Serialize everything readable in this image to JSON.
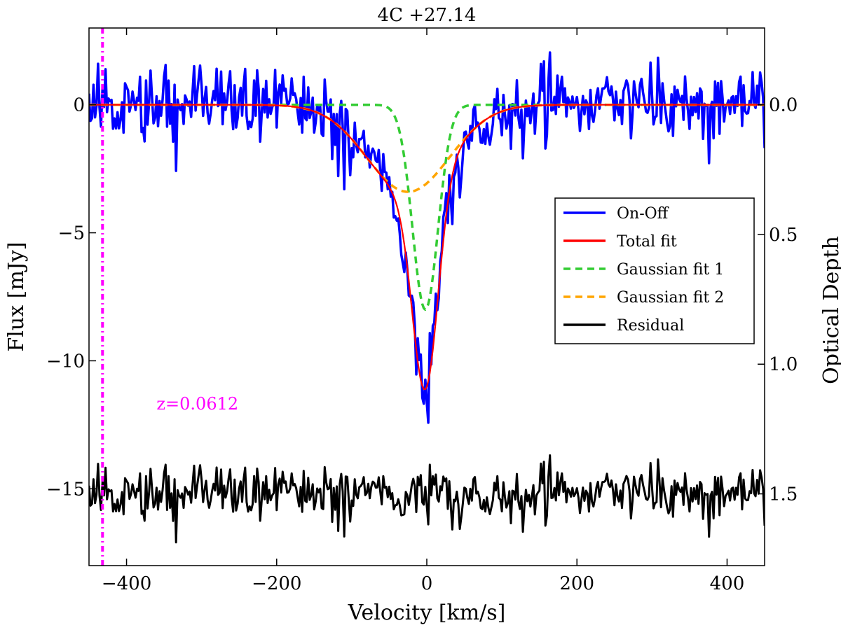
{
  "chart_data": {
    "type": "line",
    "title": "4C +27.14",
    "xlabel": "Velocity [km/s]",
    "ylabel": "Flux [mJy]",
    "ylabel_right": "Optical Depth",
    "xlim": [
      -450,
      450
    ],
    "ylim": [
      -18,
      3
    ],
    "x_ticks": [
      -400,
      -200,
      0,
      200,
      400
    ],
    "x_tick_labels": [
      "−400",
      "−200",
      "0",
      "200",
      "400"
    ],
    "y_ticks": [
      0,
      -5,
      -10,
      -15
    ],
    "y_tick_labels": [
      "0",
      "−5",
      "−10",
      "−15"
    ],
    "y2_ticks": [
      0.0,
      0.5,
      1.0,
      1.5
    ],
    "y2_tick_labels": [
      "0.0",
      "0.5",
      "1.0",
      "1.5"
    ],
    "y2_per_mjy": 0.0987,
    "grid": false,
    "legend_position": "center-right",
    "annotation": {
      "text": "z=0.0612",
      "line_x": -432,
      "label_x": -360,
      "label_y": -11.9,
      "color": "#ff00ff"
    },
    "model": {
      "step": 2,
      "gaussian_1": {
        "amplitude": -8.0,
        "center": -2,
        "sigma": 17
      },
      "gaussian_2": {
        "amplitude": -3.4,
        "center": -25,
        "sigma": 55
      },
      "spectrum_noise_rms": 0.75,
      "residual_offset": -15.2,
      "residual_noise_rms": 0.55
    },
    "series": [
      {
        "name": "On-Off",
        "color": "#0000ff",
        "style": "solid",
        "width": 3.5
      },
      {
        "name": "Total fit",
        "color": "#ff0000",
        "style": "solid",
        "width": 2.2
      },
      {
        "name": "Gaussian fit 1",
        "color": "#33cc33",
        "style": "dashed",
        "width": 3.5
      },
      {
        "name": "Gaussian fit 2",
        "color": "#ffa500",
        "style": "dashed",
        "width": 3.5
      },
      {
        "name": "Residual",
        "color": "#000000",
        "style": "solid",
        "width": 3
      }
    ]
  }
}
